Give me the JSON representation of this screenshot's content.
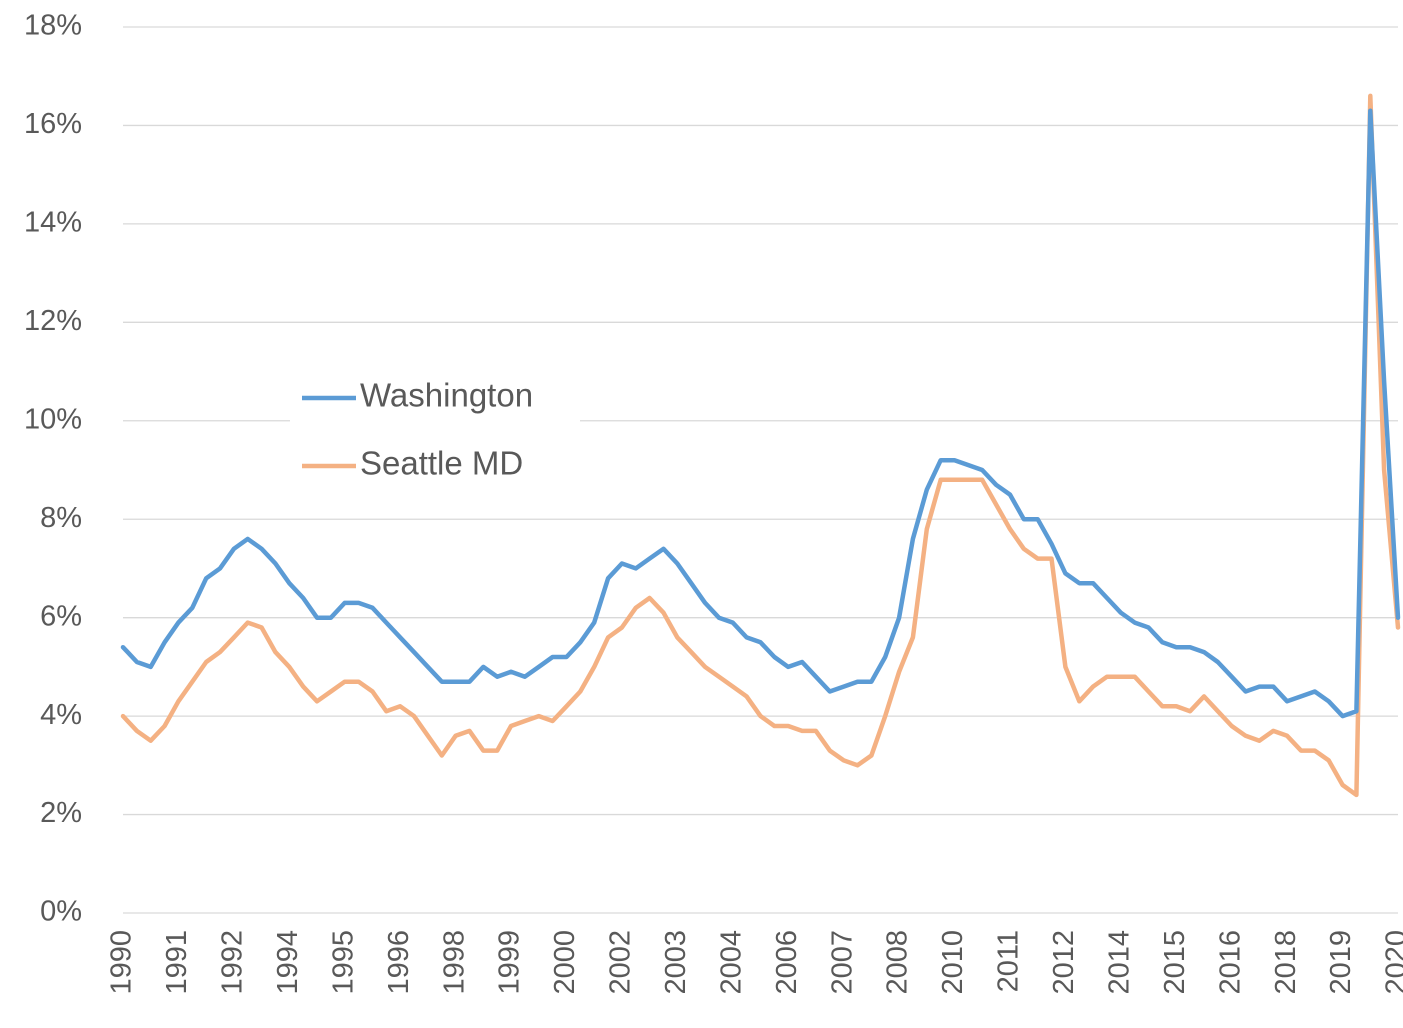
{
  "chart_data": {
    "type": "line",
    "categories": [
      "1990",
      null,
      null,
      null,
      "1991",
      null,
      null,
      null,
      "1992",
      null,
      null,
      null,
      "1994",
      null,
      null,
      null,
      "1995",
      null,
      null,
      null,
      "1996",
      null,
      null,
      null,
      "1998",
      null,
      null,
      null,
      "1999",
      null,
      null,
      null,
      "2000",
      null,
      null,
      null,
      "2002",
      null,
      null,
      null,
      "2003",
      null,
      null,
      null,
      "2004",
      null,
      null,
      null,
      "2006",
      null,
      null,
      null,
      "2007",
      null,
      null,
      null,
      "2008",
      null,
      null,
      null,
      "2010",
      null,
      null,
      null,
      "2011",
      null,
      null,
      null,
      "2012",
      null,
      null,
      null,
      "2014",
      null,
      null,
      null,
      "2015",
      null,
      null,
      null,
      "2016",
      null,
      null,
      null,
      "2018",
      null,
      null,
      null,
      "2019",
      null,
      null,
      null,
      "2020"
    ],
    "series": [
      {
        "name": "Washington",
        "color": "#5b9bd5",
        "values": [
          5.4,
          5.1,
          5.0,
          5.5,
          5.9,
          6.2,
          6.8,
          7.0,
          7.4,
          7.6,
          7.4,
          7.1,
          6.7,
          6.4,
          6.0,
          6.0,
          6.3,
          6.3,
          6.2,
          5.9,
          5.6,
          5.3,
          5.0,
          4.7,
          4.7,
          4.7,
          5.0,
          4.8,
          4.9,
          4.8,
          5.0,
          5.2,
          5.2,
          5.5,
          5.9,
          6.8,
          7.1,
          7.0,
          7.2,
          7.4,
          7.1,
          6.7,
          6.3,
          6.0,
          5.9,
          5.6,
          5.5,
          5.2,
          5.0,
          5.1,
          4.8,
          4.5,
          4.6,
          4.7,
          4.7,
          5.2,
          6.0,
          7.6,
          8.6,
          9.2,
          9.2,
          9.1,
          9.0,
          8.7,
          8.5,
          8.0,
          8.0,
          7.5,
          6.9,
          6.7,
          6.7,
          6.4,
          6.1,
          5.9,
          5.8,
          5.5,
          5.4,
          5.4,
          5.3,
          5.1,
          4.8,
          4.5,
          4.6,
          4.6,
          4.3,
          4.4,
          4.5,
          4.3,
          4.0,
          4.1,
          16.3,
          10.8,
          6.0
        ]
      },
      {
        "name": "Seattle MD",
        "color": "#f4b183",
        "values": [
          4.0,
          3.7,
          3.5,
          3.8,
          4.3,
          4.7,
          5.1,
          5.3,
          5.6,
          5.9,
          5.8,
          5.3,
          5.0,
          4.6,
          4.3,
          4.5,
          4.7,
          4.7,
          4.5,
          4.1,
          4.2,
          4.0,
          3.6,
          3.2,
          3.6,
          3.7,
          3.3,
          3.3,
          3.8,
          3.9,
          4.0,
          3.9,
          4.2,
          4.5,
          5.0,
          5.6,
          5.8,
          6.2,
          6.4,
          6.1,
          5.6,
          5.3,
          5.0,
          4.8,
          4.6,
          4.4,
          4.0,
          3.8,
          3.8,
          3.7,
          3.7,
          3.3,
          3.1,
          3.0,
          3.2,
          4.0,
          4.9,
          5.6,
          7.8,
          8.8,
          8.8,
          8.8,
          8.8,
          8.3,
          7.8,
          7.4,
          7.2,
          7.2,
          5.0,
          4.3,
          4.6,
          4.8,
          4.8,
          4.8,
          4.5,
          4.2,
          4.2,
          4.1,
          4.4,
          4.1,
          3.8,
          3.6,
          3.5,
          3.7,
          3.6,
          3.3,
          3.3,
          3.1,
          2.6,
          2.4,
          16.6,
          9.0,
          5.8
        ]
      }
    ],
    "ylim": [
      0,
      18
    ],
    "yticks": [
      {
        "value": 0,
        "label": "0%"
      },
      {
        "value": 2,
        "label": "2%"
      },
      {
        "value": 4,
        "label": "4%"
      },
      {
        "value": 6,
        "label": "6%"
      },
      {
        "value": 8,
        "label": "8%"
      },
      {
        "value": 10,
        "label": "10%"
      },
      {
        "value": 12,
        "label": "12%"
      },
      {
        "value": 14,
        "label": "14%"
      },
      {
        "value": 16,
        "label": "16%"
      },
      {
        "value": 18,
        "label": "18%"
      }
    ],
    "grid": true,
    "legend": "center-left"
  }
}
